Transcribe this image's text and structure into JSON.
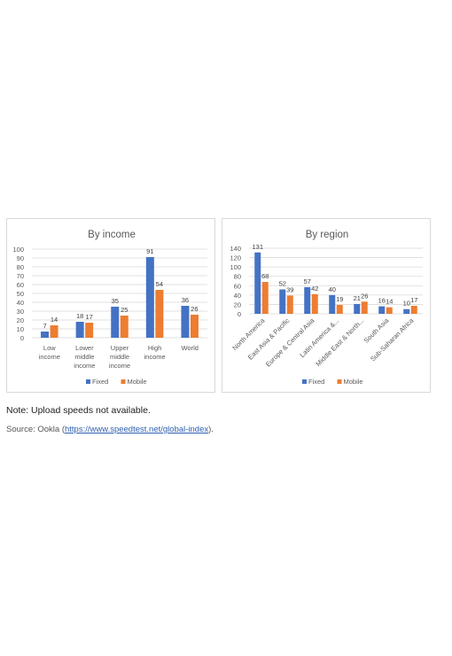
{
  "colors": {
    "fixed": "#4472c4",
    "mobile": "#ed7d31",
    "grid": "#d9d9d9",
    "text": "#595959"
  },
  "chart_data": [
    {
      "type": "bar",
      "title": "By income",
      "categories": [
        [
          "Low",
          "income"
        ],
        [
          "Lower",
          "middle",
          "income"
        ],
        [
          "Upper",
          "middle",
          "income"
        ],
        [
          "High",
          "income"
        ],
        [
          "World"
        ]
      ],
      "series": [
        {
          "name": "Fixed",
          "values": [
            7,
            18,
            35,
            91,
            36
          ]
        },
        {
          "name": "Mobile",
          "values": [
            14,
            17,
            25,
            54,
            26
          ]
        }
      ],
      "ylim": [
        0,
        100
      ],
      "yticks": [
        0,
        10,
        20,
        30,
        40,
        50,
        60,
        70,
        80,
        90,
        100
      ],
      "grid": true,
      "legend": "bottom",
      "data_labels": true
    },
    {
      "type": "bar",
      "title": "By region",
      "categories": [
        "North America",
        "East Asia & Pacific",
        "Europe & Central Asia",
        "Latin America &...",
        "Middle East & North...",
        "South Asia",
        "Sub-Saharan Africa"
      ],
      "series": [
        {
          "name": "Fixed",
          "values": [
            131,
            52,
            57,
            40,
            21,
            16,
            10
          ]
        },
        {
          "name": "Mobile",
          "values": [
            68,
            39,
            42,
            19,
            26,
            14,
            17
          ]
        }
      ],
      "ylim": [
        0,
        140
      ],
      "yticks": [
        0,
        20,
        40,
        60,
        80,
        100,
        120,
        140
      ],
      "grid": true,
      "legend": "bottom",
      "data_labels": true
    }
  ],
  "note": "Note: Upload speeds not available.",
  "source": {
    "prefix": "Source: Ookla (",
    "link": "https://www.speedtest.net/global-index",
    "suffix": ")."
  }
}
